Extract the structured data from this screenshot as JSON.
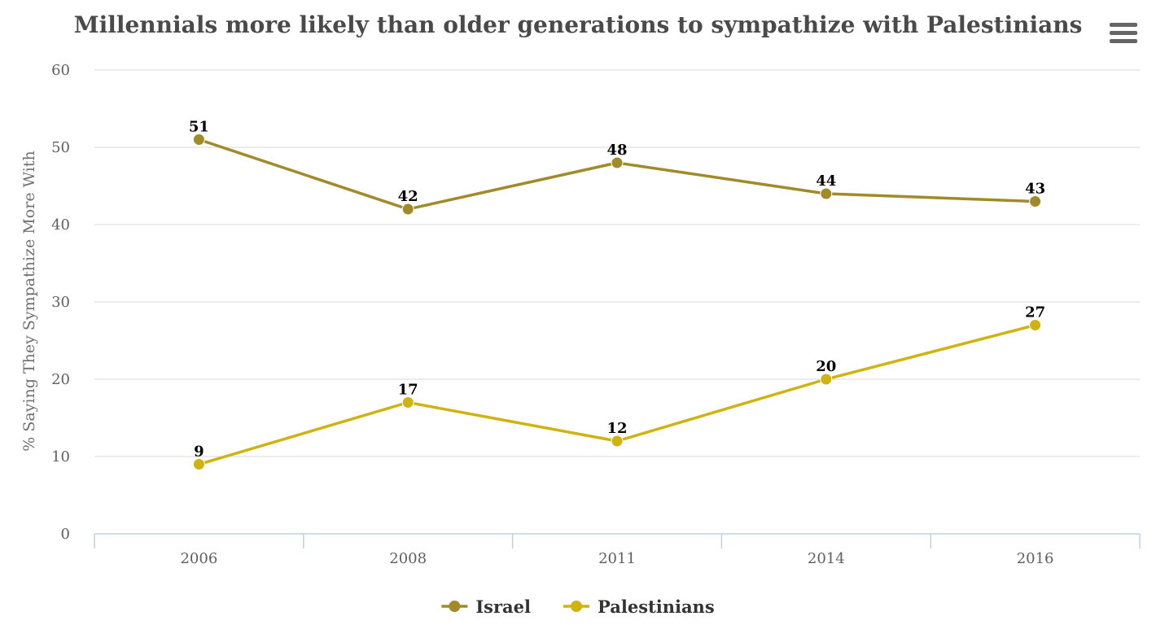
{
  "chart_data": {
    "type": "line",
    "title": "Millennials more likely than older generations to sympathize with Palestinians",
    "xlabel": "",
    "ylabel": "% Saying They Sympathize More With",
    "categories": [
      "2006",
      "2008",
      "2011",
      "2014",
      "2016"
    ],
    "ylim": [
      0,
      60
    ],
    "yticks": [
      0,
      10,
      20,
      30,
      40,
      50,
      60
    ],
    "grid": true,
    "legend_position": "bottom-center",
    "series": [
      {
        "name": "Israel",
        "color": "#a08a2a",
        "values": [
          51,
          42,
          48,
          44,
          43
        ]
      },
      {
        "name": "Palestinians",
        "color": "#cfb310",
        "values": [
          9,
          17,
          12,
          20,
          27
        ]
      }
    ]
  },
  "menu": {
    "icon": "hamburger-menu-icon"
  }
}
